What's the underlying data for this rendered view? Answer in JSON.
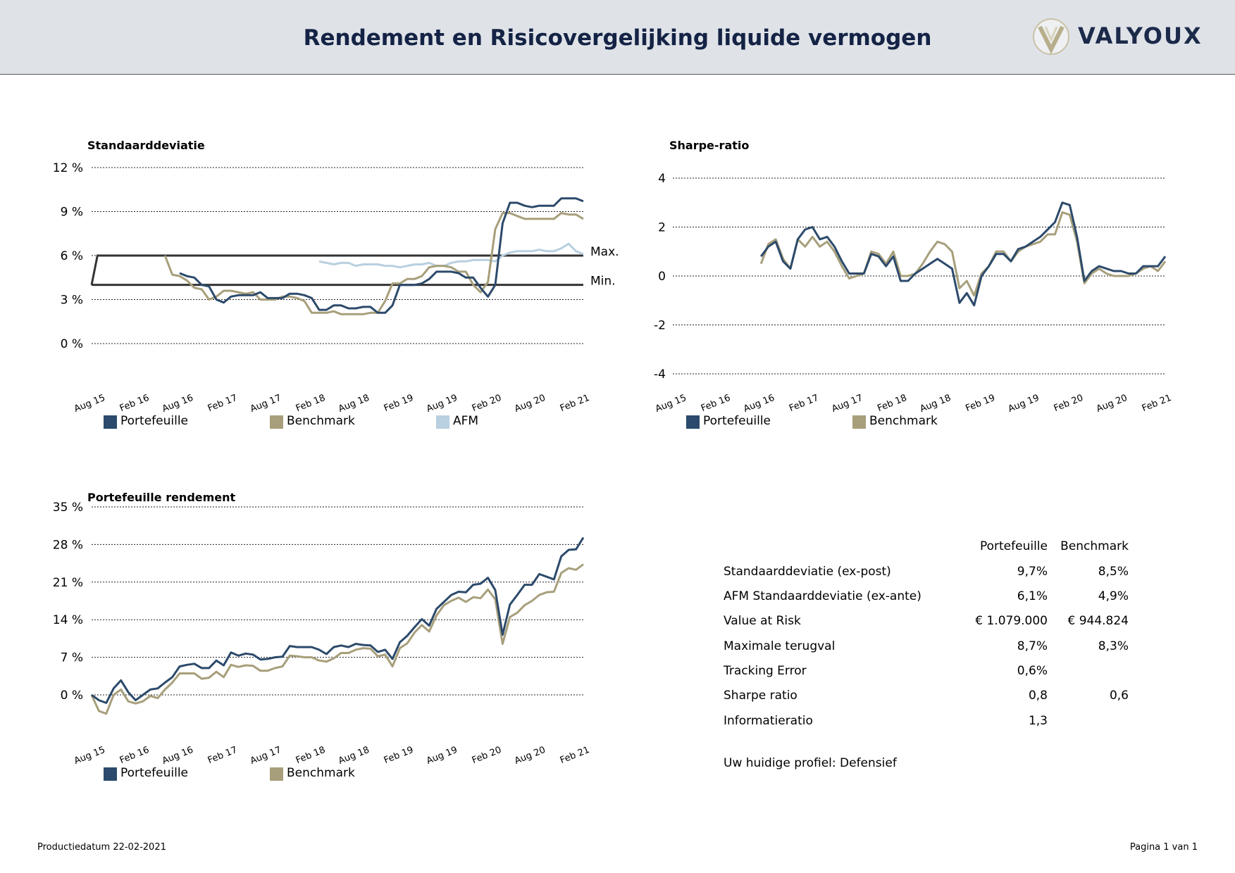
{
  "header": {
    "title": "Rendement en Risicovergelijking liquide vermogen",
    "logo_text": "VALYOUX"
  },
  "x_tick_labels": [
    "Aug 15",
    "Feb 16",
    "Aug 16",
    "Feb 17",
    "Aug 17",
    "Feb 18",
    "Aug 18",
    "Feb 19",
    "Aug 19",
    "Feb 20",
    "Aug 20",
    "Feb 21"
  ],
  "colors": {
    "portefeuille": "#2c4a6b",
    "benchmark": "#a79f7b",
    "afm": "#b8d0e0",
    "band": "#333333"
  },
  "chart_data": [
    {
      "type": "line",
      "title": "Standaarddeviatie",
      "y_ticks": [
        "12 %",
        "9 %",
        "6 %",
        "3 %",
        "0 %"
      ],
      "ylim": [
        0,
        12
      ],
      "grid": true,
      "legend_position": "bottom",
      "band": {
        "max": 6,
        "min": 4,
        "max_label": "Max.",
        "min_label": "Min.",
        "x_start": 0
      },
      "series": [
        {
          "name": "Portefeuille",
          "x": [
            12,
            13,
            14,
            15,
            16,
            17,
            18,
            19,
            20,
            21,
            22,
            23,
            24,
            25,
            26,
            27,
            28,
            29,
            30,
            31,
            32,
            33,
            34,
            35,
            36,
            37,
            38,
            39,
            40,
            41,
            42,
            43,
            44,
            45,
            46,
            47,
            48,
            49,
            50,
            51,
            52,
            53,
            54,
            55,
            56,
            57,
            58,
            59,
            60,
            61,
            62,
            63,
            64,
            65,
            66,
            67
          ],
          "values": [
            4.8,
            4.6,
            4.5,
            4.0,
            3.9,
            3.0,
            2.8,
            3.2,
            3.3,
            3.3,
            3.3,
            3.5,
            3.1,
            3.1,
            3.1,
            3.4,
            3.4,
            3.3,
            3.1,
            2.3,
            2.3,
            2.6,
            2.6,
            2.4,
            2.4,
            2.5,
            2.5,
            2.1,
            2.1,
            2.6,
            4.0,
            4.0,
            4.0,
            4.1,
            4.4,
            4.9,
            4.9,
            4.9,
            4.8,
            4.5,
            4.5,
            3.8,
            3.2,
            4.0,
            8.2,
            9.6,
            9.6,
            9.4,
            9.3,
            9.4,
            9.4,
            9.4,
            9.9,
            9.9,
            9.9,
            9.7
          ]
        },
        {
          "name": "Benchmark",
          "x": [
            10,
            11,
            12,
            13,
            14,
            15,
            16,
            17,
            18,
            19,
            20,
            21,
            22,
            23,
            24,
            25,
            26,
            27,
            28,
            29,
            30,
            31,
            32,
            33,
            34,
            35,
            36,
            37,
            38,
            39,
            40,
            41,
            42,
            43,
            44,
            45,
            46,
            47,
            48,
            49,
            50,
            51,
            52,
            53,
            54,
            55,
            56,
            57,
            58,
            59,
            60,
            61,
            62,
            63,
            64,
            65,
            66,
            67
          ],
          "values": [
            6.0,
            4.7,
            4.6,
            4.3,
            3.8,
            3.7,
            3.0,
            3.2,
            3.6,
            3.6,
            3.5,
            3.4,
            3.5,
            3.0,
            3.0,
            3.0,
            3.2,
            3.2,
            3.1,
            2.9,
            2.1,
            2.1,
            2.1,
            2.2,
            2.0,
            2.0,
            2.0,
            2.0,
            2.1,
            2.1,
            2.9,
            4.1,
            4.1,
            4.4,
            4.4,
            4.6,
            5.2,
            5.3,
            5.3,
            5.2,
            4.9,
            4.9,
            4.0,
            3.5,
            4.2,
            7.8,
            8.9,
            8.9,
            8.7,
            8.5,
            8.5,
            8.5,
            8.5,
            8.5,
            8.9,
            8.8,
            8.8,
            8.5
          ]
        },
        {
          "name": "AFM",
          "x": [
            31,
            32,
            33,
            34,
            35,
            36,
            37,
            38,
            39,
            40,
            41,
            42,
            43,
            44,
            45,
            46,
            47,
            48,
            49,
            50,
            51,
            52,
            53,
            54,
            55,
            56,
            57,
            58,
            59,
            60,
            61,
            62,
            63,
            64,
            65,
            66,
            67
          ],
          "values": [
            5.6,
            5.5,
            5.4,
            5.5,
            5.5,
            5.3,
            5.4,
            5.4,
            5.4,
            5.3,
            5.3,
            5.2,
            5.3,
            5.4,
            5.4,
            5.5,
            5.3,
            5.3,
            5.5,
            5.6,
            5.6,
            5.7,
            5.7,
            5.7,
            5.6,
            6.0,
            6.2,
            6.3,
            6.3,
            6.3,
            6.4,
            6.3,
            6.3,
            6.5,
            6.8,
            6.3,
            6.1
          ]
        }
      ]
    },
    {
      "type": "line",
      "title": "Sharpe-ratio",
      "y_ticks": [
        "4",
        "2",
        "0",
        "-2",
        "-4"
      ],
      "ylim": [
        -4,
        4
      ],
      "grid": true,
      "legend_position": "bottom",
      "series": [
        {
          "name": "Portefeuille",
          "x": [
            12,
            13,
            14,
            15,
            16,
            17,
            18,
            19,
            20,
            21,
            22,
            23,
            24,
            25,
            26,
            27,
            28,
            29,
            30,
            31,
            32,
            33,
            34,
            35,
            36,
            37,
            38,
            39,
            40,
            41,
            42,
            43,
            44,
            45,
            46,
            47,
            48,
            49,
            50,
            51,
            52,
            53,
            54,
            55,
            56,
            57,
            58,
            59,
            60,
            61,
            62,
            63,
            64,
            65,
            66,
            67
          ],
          "values": [
            0.8,
            1.2,
            1.4,
            0.6,
            0.3,
            1.5,
            1.9,
            2.0,
            1.5,
            1.6,
            1.2,
            0.6,
            0.1,
            0.1,
            0.1,
            0.9,
            0.8,
            0.4,
            0.8,
            -0.2,
            -0.2,
            0.1,
            0.3,
            0.5,
            0.7,
            0.5,
            0.3,
            -1.1,
            -0.7,
            -1.2,
            0.0,
            0.4,
            0.9,
            0.9,
            0.6,
            1.1,
            1.2,
            1.4,
            1.6,
            1.9,
            2.2,
            3.0,
            2.9,
            1.6,
            -0.2,
            0.2,
            0.4,
            0.3,
            0.2,
            0.2,
            0.1,
            0.1,
            0.4,
            0.4,
            0.4,
            0.8
          ]
        },
        {
          "name": "Benchmark",
          "x": [
            12,
            13,
            14,
            15,
            16,
            17,
            18,
            19,
            20,
            21,
            22,
            23,
            24,
            25,
            26,
            27,
            28,
            29,
            30,
            31,
            32,
            33,
            34,
            35,
            36,
            37,
            38,
            39,
            40,
            41,
            42,
            43,
            44,
            45,
            46,
            47,
            48,
            49,
            50,
            51,
            52,
            53,
            54,
            55,
            56,
            57,
            58,
            59,
            60,
            61,
            62,
            63,
            64,
            65,
            66,
            67
          ],
          "values": [
            0.5,
            1.3,
            1.5,
            0.7,
            0.3,
            1.5,
            1.2,
            1.6,
            1.2,
            1.4,
            1.0,
            0.4,
            -0.1,
            0.0,
            0.1,
            1.0,
            0.9,
            0.5,
            1.0,
            0.0,
            0.0,
            0.1,
            0.5,
            1.0,
            1.4,
            1.3,
            1.0,
            -0.5,
            -0.2,
            -0.8,
            0.1,
            0.4,
            1.0,
            1.0,
            0.6,
            1.0,
            1.2,
            1.3,
            1.4,
            1.7,
            1.7,
            2.6,
            2.5,
            1.4,
            -0.3,
            0.1,
            0.3,
            0.1,
            0.0,
            0.0,
            0.0,
            0.1,
            0.3,
            0.4,
            0.2,
            0.6
          ]
        }
      ]
    },
    {
      "type": "line",
      "title": "Portefeuille rendement",
      "y_ticks": [
        "35 %",
        "28 %",
        "21 %",
        "14 %",
        "7 %",
        "0 %"
      ],
      "ylim": [
        0,
        35
      ],
      "grid": true,
      "legend_position": "bottom",
      "series": [
        {
          "name": "Portefeuille",
          "x": [
            0,
            1,
            2,
            3,
            4,
            5,
            6,
            7,
            8,
            9,
            10,
            11,
            12,
            13,
            14,
            15,
            16,
            17,
            18,
            19,
            20,
            21,
            22,
            23,
            24,
            25,
            26,
            27,
            28,
            29,
            30,
            31,
            32,
            33,
            34,
            35,
            36,
            37,
            38,
            39,
            40,
            41,
            42,
            43,
            44,
            45,
            46,
            47,
            48,
            49,
            50,
            51,
            52,
            53,
            54,
            55,
            56,
            57,
            58,
            59,
            60,
            61,
            62,
            63,
            64,
            65,
            66,
            67
          ],
          "values": [
            0.0,
            -1.0,
            -1.5,
            1.2,
            2.7,
            0.5,
            -1.0,
            0.0,
            1.0,
            1.2,
            2.3,
            3.3,
            5.3,
            5.6,
            5.8,
            5.0,
            5.0,
            6.4,
            5.5,
            7.9,
            7.3,
            7.7,
            7.5,
            6.6,
            6.7,
            7.0,
            7.1,
            9.1,
            8.9,
            8.9,
            8.9,
            8.4,
            7.6,
            8.9,
            9.2,
            8.9,
            9.5,
            9.3,
            9.2,
            8.0,
            8.4,
            6.7,
            9.8,
            11.0,
            12.6,
            14.1,
            12.9,
            16.0,
            17.3,
            18.6,
            19.2,
            19.1,
            20.5,
            20.7,
            21.8,
            19.5,
            11.2,
            16.8,
            18.6,
            20.5,
            20.5,
            22.5,
            22.0,
            21.5,
            25.8,
            27.0,
            27.1,
            29.3
          ]
        },
        {
          "name": "Benchmark",
          "x": [
            0,
            1,
            2,
            3,
            4,
            5,
            6,
            7,
            8,
            9,
            10,
            11,
            12,
            13,
            14,
            15,
            16,
            17,
            18,
            19,
            20,
            21,
            22,
            23,
            24,
            25,
            26,
            27,
            28,
            29,
            30,
            31,
            32,
            33,
            34,
            35,
            36,
            37,
            38,
            39,
            40,
            41,
            42,
            43,
            44,
            45,
            46,
            47,
            48,
            49,
            50,
            51,
            52,
            53,
            54,
            55,
            56,
            57,
            58,
            59,
            60,
            61,
            62,
            63,
            64,
            65,
            66,
            67
          ],
          "values": [
            0.0,
            -3.0,
            -3.5,
            0.0,
            1.0,
            -1.2,
            -1.6,
            -1.2,
            -0.2,
            -0.6,
            1.0,
            2.3,
            4.0,
            4.0,
            4.0,
            3.0,
            3.2,
            4.3,
            3.3,
            5.6,
            5.2,
            5.5,
            5.4,
            4.5,
            4.5,
            5.0,
            5.3,
            7.3,
            7.2,
            7.0,
            7.0,
            6.4,
            6.2,
            6.8,
            7.8,
            7.8,
            8.4,
            8.7,
            8.6,
            7.2,
            7.5,
            5.3,
            8.7,
            9.6,
            11.6,
            13.0,
            11.8,
            14.8,
            16.7,
            17.5,
            18.1,
            17.3,
            18.2,
            18.0,
            19.6,
            17.8,
            9.5,
            14.5,
            15.3,
            16.7,
            17.5,
            18.6,
            19.1,
            19.2,
            22.7,
            23.6,
            23.3,
            24.3
          ]
        }
      ]
    }
  ],
  "stats": {
    "headers": [
      "Portefeuille",
      "Benchmark"
    ],
    "rows": [
      {
        "label": "Standaarddeviatie (ex-post)",
        "portefeuille": "9,7%",
        "benchmark": "8,5%"
      },
      {
        "label": "AFM Standaarddeviatie (ex-ante)",
        "portefeuille": "6,1%",
        "benchmark": "4,9%"
      },
      {
        "label": "Value at Risk",
        "portefeuille": "€ 1.079.000",
        "benchmark": "€ 944.824"
      },
      {
        "label": "Maximale terugval",
        "portefeuille": "8,7%",
        "benchmark": "8,3%"
      },
      {
        "label": "Tracking Error",
        "portefeuille": "0,6%",
        "benchmark": ""
      },
      {
        "label": "Sharpe ratio",
        "portefeuille": "0,8",
        "benchmark": "0,6"
      },
      {
        "label": "Informatieratio",
        "portefeuille": "1,3",
        "benchmark": ""
      }
    ]
  },
  "profile": "Uw huidige profiel: Defensief",
  "footer": {
    "left": "Productiedatum 22-02-2021",
    "right": "Pagina 1 van 1"
  }
}
